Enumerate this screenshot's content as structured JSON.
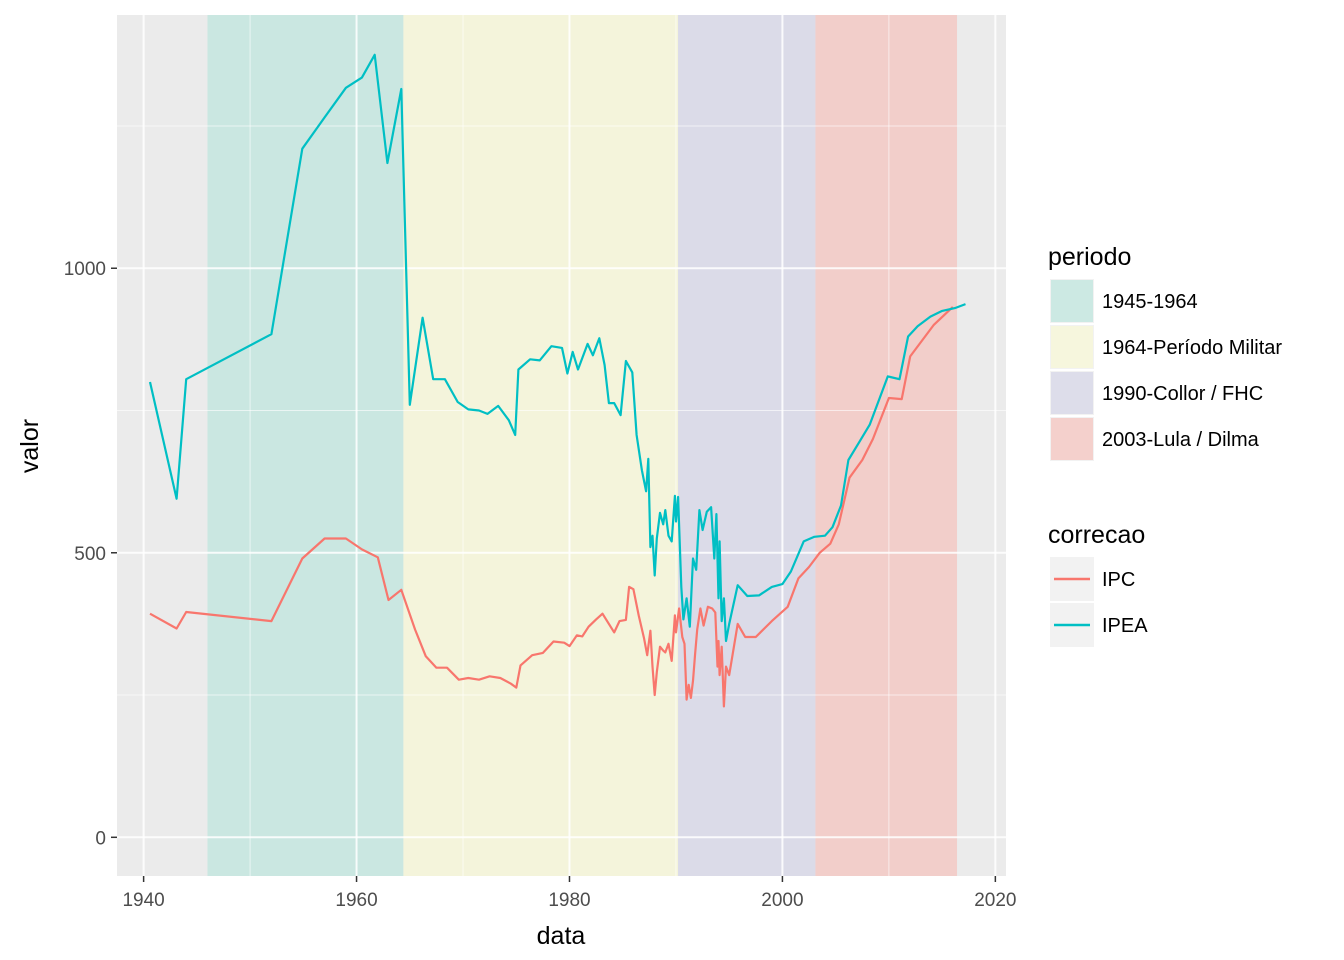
{
  "chart_data": {
    "type": "line",
    "xlabel": "data",
    "ylabel": "valor",
    "xlim": [
      1937.5,
      2021
    ],
    "ylim": [
      -68,
      1445
    ],
    "x_ticks": [
      1940,
      1960,
      1980,
      2000,
      2020
    ],
    "x_minor_ticks": [
      1950,
      1970,
      1990,
      2010
    ],
    "y_ticks": [
      0,
      500,
      1000
    ],
    "y_minor_ticks": [
      250,
      750,
      1250
    ],
    "grid": true,
    "panel_background": "#ebebeb",
    "legend_position": "right",
    "periods": {
      "title": "periodo",
      "items": [
        {
          "label": "1945-1964",
          "start": 1946.0,
          "end": 1964.4,
          "color": "#bfe6dd"
        },
        {
          "label": "1964-Período Militar",
          "start": 1964.4,
          "end": 1990.2,
          "color": "#f7f7d5"
        },
        {
          "label": "1990-Collor / FHC",
          "start": 1990.2,
          "end": 2003.1,
          "color": "#d5d6e7"
        },
        {
          "label": "2003-Lula / Dilma",
          "start": 2003.1,
          "end": 2016.4,
          "color": "#f4c4bf"
        }
      ]
    },
    "series_legend_title": "correcao",
    "series": [
      {
        "name": "IPC",
        "color": "#f8766d",
        "points": [
          [
            1940.6,
            393
          ],
          [
            1943.1,
            367
          ],
          [
            1944.0,
            396
          ],
          [
            1952.0,
            380
          ],
          [
            1954.9,
            490
          ],
          [
            1957.0,
            525
          ],
          [
            1959.0,
            525
          ],
          [
            1960.5,
            506
          ],
          [
            1962.0,
            492
          ],
          [
            1963.0,
            417
          ],
          [
            1964.2,
            435
          ],
          [
            1965.5,
            365
          ],
          [
            1966.5,
            318
          ],
          [
            1967.5,
            298
          ],
          [
            1968.5,
            298
          ],
          [
            1969.6,
            277
          ],
          [
            1970.5,
            280
          ],
          [
            1971.5,
            277
          ],
          [
            1972.5,
            283
          ],
          [
            1973.5,
            280
          ],
          [
            1974.5,
            270
          ],
          [
            1975.0,
            263
          ],
          [
            1975.4,
            302
          ],
          [
            1976.5,
            320
          ],
          [
            1977.5,
            324
          ],
          [
            1978.5,
            344
          ],
          [
            1979.5,
            342
          ],
          [
            1980.0,
            336
          ],
          [
            1980.7,
            355
          ],
          [
            1981.2,
            353
          ],
          [
            1981.8,
            370
          ],
          [
            1982.5,
            383
          ],
          [
            1983.1,
            393
          ],
          [
            1983.7,
            375
          ],
          [
            1984.2,
            360
          ],
          [
            1984.7,
            380
          ],
          [
            1985.3,
            382
          ],
          [
            1985.6,
            440
          ],
          [
            1986.0,
            436
          ],
          [
            1986.5,
            390
          ],
          [
            1987.0,
            350
          ],
          [
            1987.3,
            320
          ],
          [
            1987.6,
            363
          ],
          [
            1987.8,
            300
          ],
          [
            1988.0,
            250
          ],
          [
            1988.2,
            290
          ],
          [
            1988.5,
            335
          ],
          [
            1988.8,
            328
          ],
          [
            1989.0,
            325
          ],
          [
            1989.3,
            340
          ],
          [
            1989.6,
            310
          ],
          [
            1989.9,
            390
          ],
          [
            1990.0,
            360
          ],
          [
            1990.3,
            402
          ],
          [
            1990.6,
            352
          ],
          [
            1990.8,
            340
          ],
          [
            1991.0,
            242
          ],
          [
            1991.2,
            268
          ],
          [
            1991.4,
            245
          ],
          [
            1991.6,
            275
          ],
          [
            1991.8,
            322
          ],
          [
            1992.0,
            365
          ],
          [
            1992.3,
            402
          ],
          [
            1992.6,
            372
          ],
          [
            1993.0,
            405
          ],
          [
            1993.4,
            402
          ],
          [
            1993.7,
            395
          ],
          [
            1993.9,
            300
          ],
          [
            1994.0,
            345
          ],
          [
            1994.1,
            285
          ],
          [
            1994.3,
            335
          ],
          [
            1994.5,
            230
          ],
          [
            1994.7,
            300
          ],
          [
            1995.0,
            285
          ],
          [
            1995.8,
            375
          ],
          [
            1996.5,
            352
          ],
          [
            1997.5,
            352
          ],
          [
            1999.0,
            380
          ],
          [
            2000.5,
            405
          ],
          [
            2001.5,
            455
          ],
          [
            2002.5,
            475
          ],
          [
            2003.5,
            500
          ],
          [
            2004.5,
            516
          ],
          [
            2005.3,
            550
          ],
          [
            2006.3,
            632
          ],
          [
            2007.5,
            663
          ],
          [
            2008.5,
            700
          ],
          [
            2010.0,
            772
          ],
          [
            2011.2,
            770
          ],
          [
            2012.0,
            845
          ],
          [
            2014.2,
            900
          ],
          [
            2016.0,
            932
          ]
        ]
      },
      {
        "name": "IPEA",
        "color": "#00bfc4",
        "points": [
          [
            1940.6,
            800
          ],
          [
            1943.1,
            595
          ],
          [
            1944.0,
            805
          ],
          [
            1952.0,
            884
          ],
          [
            1954.9,
            1210
          ],
          [
            1957.0,
            1265
          ],
          [
            1959.0,
            1317
          ],
          [
            1960.5,
            1335
          ],
          [
            1961.7,
            1375
          ],
          [
            1962.9,
            1185
          ],
          [
            1964.2,
            1315
          ],
          [
            1965.0,
            760
          ],
          [
            1966.2,
            913
          ],
          [
            1967.2,
            805
          ],
          [
            1968.3,
            805
          ],
          [
            1969.5,
            765
          ],
          [
            1970.5,
            752
          ],
          [
            1971.5,
            750
          ],
          [
            1972.3,
            744
          ],
          [
            1973.3,
            758
          ],
          [
            1974.3,
            733
          ],
          [
            1974.9,
            707
          ],
          [
            1975.2,
            822
          ],
          [
            1976.3,
            840
          ],
          [
            1977.2,
            838
          ],
          [
            1978.3,
            863
          ],
          [
            1979.3,
            860
          ],
          [
            1979.8,
            815
          ],
          [
            1980.3,
            853
          ],
          [
            1980.8,
            822
          ],
          [
            1981.7,
            867
          ],
          [
            1982.2,
            847
          ],
          [
            1982.8,
            877
          ],
          [
            1983.3,
            830
          ],
          [
            1983.7,
            763
          ],
          [
            1984.2,
            763
          ],
          [
            1984.8,
            742
          ],
          [
            1985.3,
            837
          ],
          [
            1985.9,
            817
          ],
          [
            1986.3,
            707
          ],
          [
            1986.8,
            645
          ],
          [
            1987.2,
            608
          ],
          [
            1987.4,
            665
          ],
          [
            1987.6,
            510
          ],
          [
            1987.8,
            530
          ],
          [
            1988.0,
            460
          ],
          [
            1988.2,
            525
          ],
          [
            1988.5,
            570
          ],
          [
            1988.8,
            550
          ],
          [
            1989.0,
            575
          ],
          [
            1989.3,
            530
          ],
          [
            1989.6,
            520
          ],
          [
            1989.9,
            600
          ],
          [
            1990.0,
            555
          ],
          [
            1990.2,
            598
          ],
          [
            1990.5,
            440
          ],
          [
            1990.7,
            383
          ],
          [
            1991.0,
            420
          ],
          [
            1991.3,
            370
          ],
          [
            1991.6,
            490
          ],
          [
            1991.9,
            470
          ],
          [
            1992.2,
            575
          ],
          [
            1992.5,
            540
          ],
          [
            1992.9,
            572
          ],
          [
            1993.3,
            580
          ],
          [
            1993.6,
            490
          ],
          [
            1993.8,
            568
          ],
          [
            1994.0,
            420
          ],
          [
            1994.1,
            520
          ],
          [
            1994.3,
            380
          ],
          [
            1994.5,
            420
          ],
          [
            1994.7,
            345
          ],
          [
            1995.0,
            375
          ],
          [
            1995.8,
            443
          ],
          [
            1996.7,
            424
          ],
          [
            1997.8,
            425
          ],
          [
            1999.0,
            440
          ],
          [
            2000.0,
            445
          ],
          [
            2000.8,
            467
          ],
          [
            2002.0,
            520
          ],
          [
            2003.0,
            528
          ],
          [
            2004.0,
            530
          ],
          [
            2004.7,
            545
          ],
          [
            2005.5,
            583
          ],
          [
            2006.2,
            663
          ],
          [
            2007.3,
            697
          ],
          [
            2008.2,
            725
          ],
          [
            2009.9,
            810
          ],
          [
            2011.0,
            805
          ],
          [
            2011.8,
            880
          ],
          [
            2012.7,
            898
          ],
          [
            2013.9,
            915
          ],
          [
            2015.0,
            925
          ],
          [
            2016.2,
            930
          ],
          [
            2017.2,
            937
          ]
        ]
      }
    ]
  }
}
